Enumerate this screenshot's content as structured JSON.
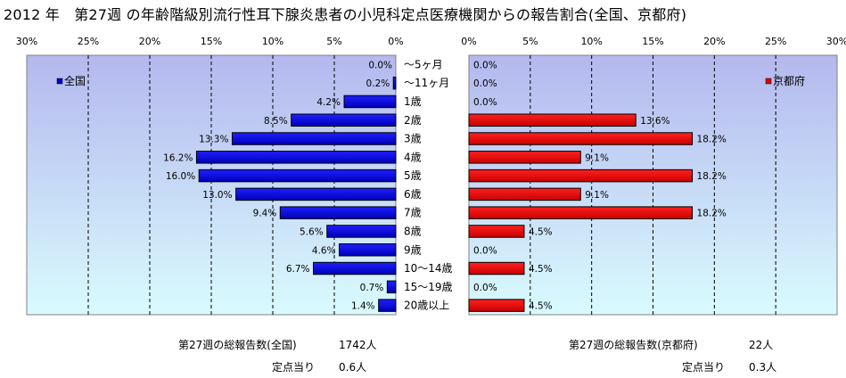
{
  "title": "2012 年　第27週 の年齢階級別流行性耳下腺炎患者の小児科定点医療機関からの報告割合(全国、京都府)",
  "chart_data": {
    "type": "bar",
    "categories": [
      "～5ヶ月",
      "～11ヶ月",
      "1歳",
      "2歳",
      "3歳",
      "4歳",
      "5歳",
      "6歳",
      "7歳",
      "8歳",
      "9歳",
      "10～14歳",
      "15～19歳",
      "20歳以上"
    ],
    "x_ticks_label": [
      "30%",
      "25%",
      "20%",
      "15%",
      "10%",
      "5%",
      "0%"
    ],
    "x_ticks_value": [
      30,
      25,
      20,
      15,
      10,
      5,
      0
    ],
    "xlim": [
      0,
      30
    ],
    "grid": true,
    "series": [
      {
        "name": "全国",
        "color": "#0000cc",
        "legend_position": "top-left",
        "values": [
          0.0,
          0.2,
          4.2,
          8.5,
          13.3,
          16.2,
          16.0,
          13.0,
          9.4,
          5.6,
          4.6,
          6.7,
          0.7,
          1.4
        ],
        "labels": [
          "0.0%",
          "0.2%",
          "4.2%",
          "8.5%",
          "13.3%",
          "16.2%",
          "16.0%",
          "13.0%",
          "9.4%",
          "5.6%",
          "4.6%",
          "6.7%",
          "0.7%",
          "1.4%"
        ]
      },
      {
        "name": "京都府",
        "color": "#e00000",
        "legend_position": "top-right",
        "values": [
          0.0,
          0.0,
          0.0,
          13.6,
          18.2,
          9.1,
          18.2,
          9.1,
          18.2,
          4.5,
          0.0,
          4.5,
          0.0,
          4.5
        ],
        "labels": [
          "0.0%",
          "0.0%",
          "0.0%",
          "13.6%",
          "18.2%",
          "9.1%",
          "18.2%",
          "9.1%",
          "18.2%",
          "4.5%",
          "0.0%",
          "4.5%",
          "0.0%",
          "4.5%"
        ]
      }
    ],
    "right_ticks_label": [
      "0%",
      "5%",
      "10%",
      "15%",
      "20%",
      "25%",
      "30%"
    ],
    "right_ticks_value": [
      0,
      5,
      10,
      15,
      20,
      25,
      30
    ]
  },
  "footer": {
    "national_label": "第27週の総報告数(全国)",
    "national_count": "1742人",
    "national_per_label": "定点当り",
    "national_per_value": "0.6人",
    "kyoto_label": "第27週の総報告数(京都府)",
    "kyoto_count": "22人",
    "kyoto_per_label": "定点当り",
    "kyoto_per_value": "0.3人"
  }
}
